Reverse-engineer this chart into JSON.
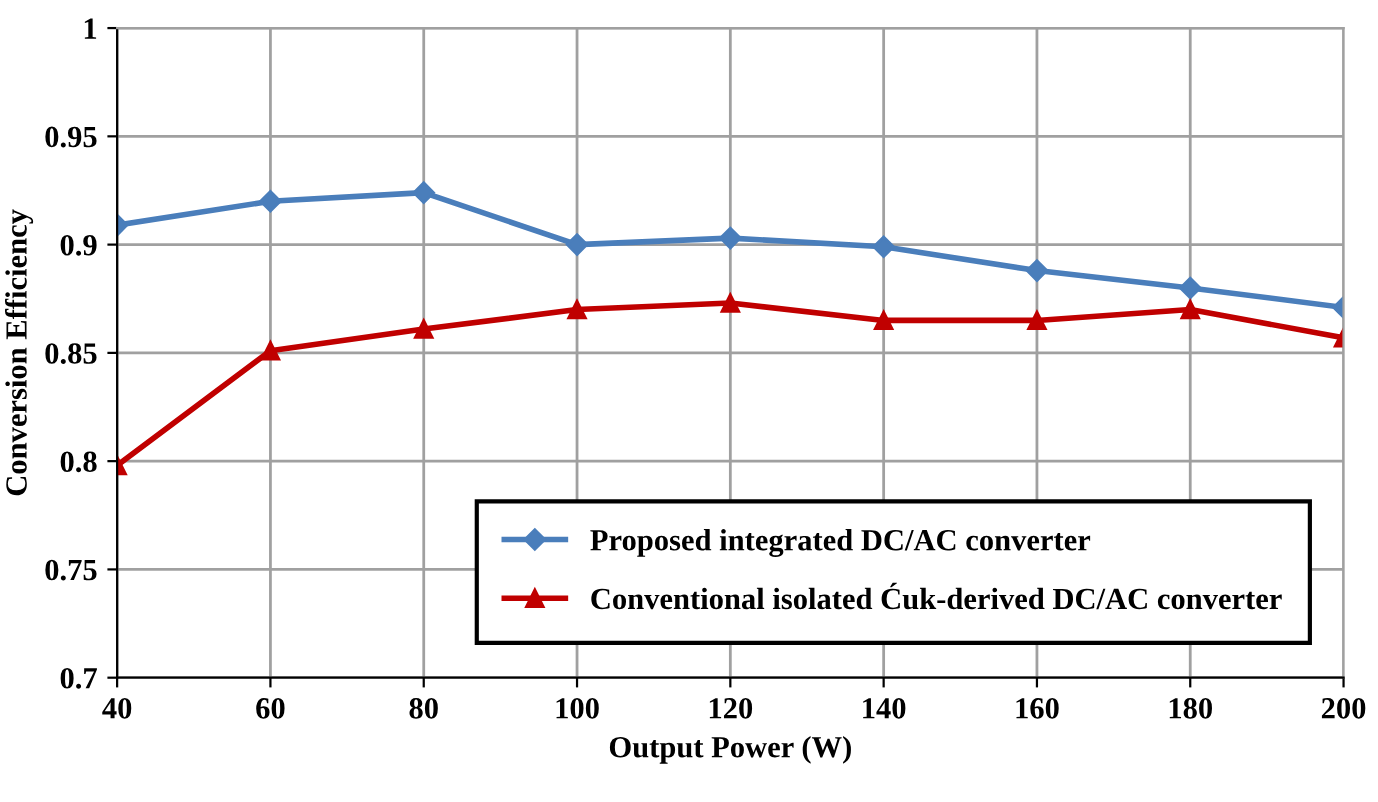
{
  "chart_data": {
    "type": "line",
    "xlabel": "Output Power (W)",
    "ylabel": "Conversion Efficiency",
    "x": [
      40,
      60,
      80,
      100,
      120,
      140,
      160,
      180,
      200
    ],
    "series": [
      {
        "name": "Proposed integrated DC/AC converter",
        "color": "#4a7ebb",
        "marker": "diamond",
        "values": [
          0.909,
          0.92,
          0.924,
          0.9,
          0.903,
          0.899,
          0.888,
          0.88,
          0.871
        ]
      },
      {
        "name": "Conventional isolated Ćuk-derived DC/AC converter",
        "color": "#c00000",
        "marker": "triangle",
        "values": [
          0.798,
          0.851,
          0.861,
          0.87,
          0.873,
          0.865,
          0.865,
          0.87,
          0.857
        ]
      }
    ],
    "xlim": [
      40,
      200
    ],
    "xticks": [
      40,
      60,
      80,
      100,
      120,
      140,
      160,
      180,
      200
    ],
    "ylim": [
      0.7,
      1
    ],
    "yticks": [
      0.7,
      0.75,
      0.8,
      0.85,
      0.9,
      0.95,
      1
    ],
    "grid": true,
    "legend": "bottom right",
    "line_style": "solid"
  }
}
